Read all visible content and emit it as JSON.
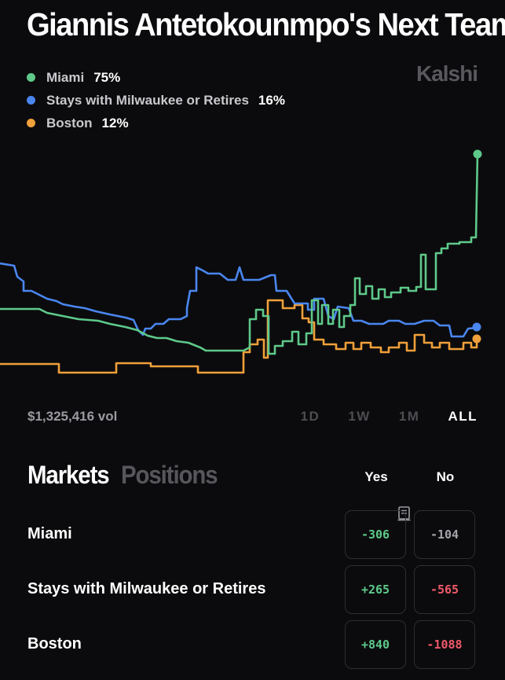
{
  "title": "Giannis Antetokounmpo's Next Team",
  "brand": "Kalshi",
  "legend": [
    {
      "name": "Miami",
      "pct": "75%",
      "color": "#5ec98a"
    },
    {
      "name": "Stays with Milwaukee or Retires",
      "pct": "16%",
      "color": "#4a86f0"
    },
    {
      "name": "Boston",
      "pct": "12%",
      "color": "#f0a03a"
    }
  ],
  "chart_data": {
    "type": "line",
    "series": [
      {
        "name": "Miami",
        "color": "#5ec98a",
        "end_value": 75
      },
      {
        "name": "Stays with Milwaukee or Retires",
        "color": "#4a86f0",
        "end_value": 16
      },
      {
        "name": "Boston",
        "color": "#f0a03a",
        "end_value": 12
      }
    ]
  },
  "volume": "$1,325,416 vol",
  "ranges": [
    "1D",
    "1W",
    "1M",
    "ALL"
  ],
  "active_range": "ALL",
  "tabs": {
    "markets": "Markets",
    "positions": "Positions"
  },
  "columns": {
    "yes": "Yes",
    "no": "No"
  },
  "markets": [
    {
      "name": "Miami",
      "yes": "-306",
      "no": "-104",
      "yes_color": "green",
      "no_color": "gray"
    },
    {
      "name": "Stays with Milwaukee or Retires",
      "yes": "+265",
      "no": "-565",
      "yes_color": "green",
      "no_color": "red"
    },
    {
      "name": "Boston",
      "yes": "+840",
      "no": "-1088",
      "yes_color": "green",
      "no_color": "red"
    }
  ]
}
